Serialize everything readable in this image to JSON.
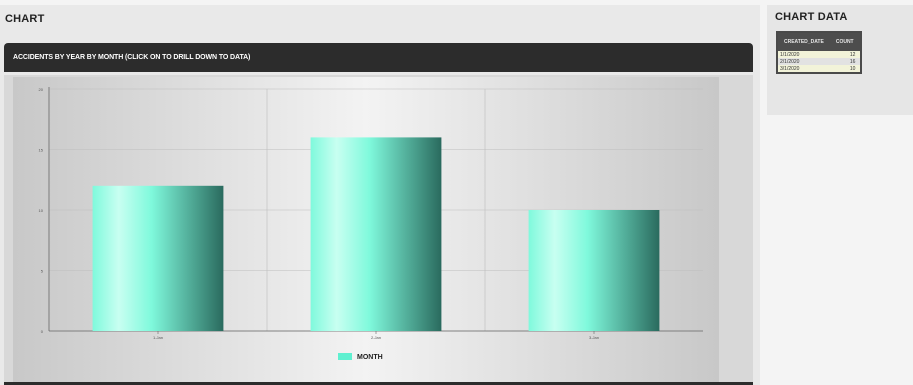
{
  "headings": {
    "chart": "CHART",
    "chart_data": "CHART DATA"
  },
  "chart_header": {
    "title": "ACCIDENTS BY YEAR BY MONTH (CLICK ON TO DRILL DOWN TO DATA)"
  },
  "table": {
    "columns": [
      "CREATED_DATE",
      "COUNT"
    ],
    "rows": [
      [
        "1/1/2020",
        "12"
      ],
      [
        "2/1/2020",
        "16"
      ],
      [
        "3/1/2020",
        "10"
      ]
    ]
  },
  "chart_data": {
    "type": "bar",
    "categories": [
      "1-Jan",
      "2-Jan",
      "3-Jan"
    ],
    "series": [
      {
        "name": "MONTH",
        "values": [
          12,
          16,
          10
        ]
      }
    ],
    "ylim": [
      0,
      20
    ],
    "y_ticks": [
      "0",
      "5",
      "10",
      "15",
      "20"
    ],
    "grid": true,
    "legend": "bottom-center",
    "colors": {
      "bar_light": "#7ff9dc",
      "bar_mid": "#c8fff1",
      "bar_dark": "#2a6a5e",
      "legend_swatch": "#5ff0d0"
    }
  }
}
